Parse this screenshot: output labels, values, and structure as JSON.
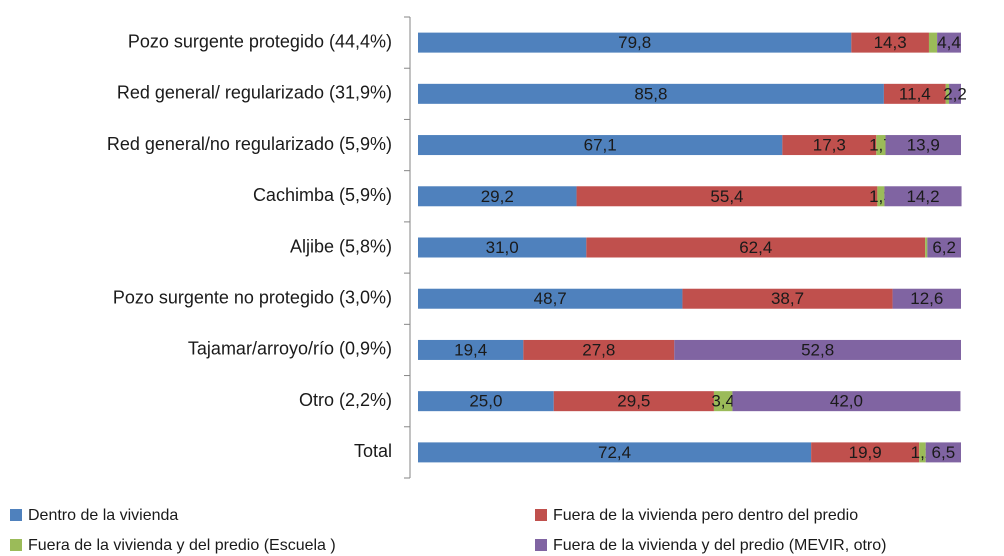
{
  "chart_data": {
    "type": "stacked-bar-horizontal",
    "categories": [
      "Pozo surgente protegido (44,4%)",
      "Red general/ regularizado (31,9%)",
      "Red general/no regularizado (5,9%)",
      "Cachimba (5,9%)",
      "Aljibe (5,8%)",
      "Pozo surgente no protegido (3,0%)",
      "Tajamar/arroyo/río (0,9%)",
      "Otro (2,2%)",
      "Total"
    ],
    "xlim": [
      0,
      100
    ],
    "series": [
      {
        "name": "Dentro de la vivienda",
        "color": "#4f81bd",
        "values": [
          79.8,
          85.8,
          67.1,
          29.2,
          31.0,
          48.7,
          19.4,
          25.0,
          72.4
        ],
        "value_labels": [
          "79,8",
          "85,8",
          "67,1",
          "29,2",
          "31,0",
          "48,7",
          "19,4",
          "25,0",
          "72,4"
        ]
      },
      {
        "name": "Fuera de la vivienda pero dentro del predio",
        "color": "#c0504d",
        "values": [
          14.3,
          11.4,
          17.3,
          55.4,
          62.4,
          38.7,
          27.8,
          29.5,
          19.9
        ],
        "value_labels": [
          "14,3",
          "11,4",
          "17,3",
          "55,4",
          "62,4",
          "38,7",
          "27,8",
          "29,5",
          "19,9"
        ]
      },
      {
        "name": "Fuera de la vivienda y del predio (Escuela )",
        "color": "#9bbb59",
        "values": [
          1.5,
          0.6,
          1.7,
          1.3,
          0.4,
          0,
          0,
          3.4,
          1.2
        ],
        "value_labels": [
          null,
          null,
          "1,7",
          "1,3",
          null,
          null,
          null,
          "3,4",
          "1,2"
        ]
      },
      {
        "name": "Fuera de la vivienda y del predio (MEVIR, otro)",
        "color": "#8064a2",
        "values": [
          4.4,
          2.2,
          13.9,
          14.2,
          6.2,
          12.6,
          52.8,
          42.0,
          6.5
        ],
        "value_labels": [
          "4,4",
          "2,2",
          "13,9",
          "14,2",
          "6,2",
          "12,6",
          "52,8",
          "42,0",
          "6,5"
        ]
      }
    ]
  }
}
